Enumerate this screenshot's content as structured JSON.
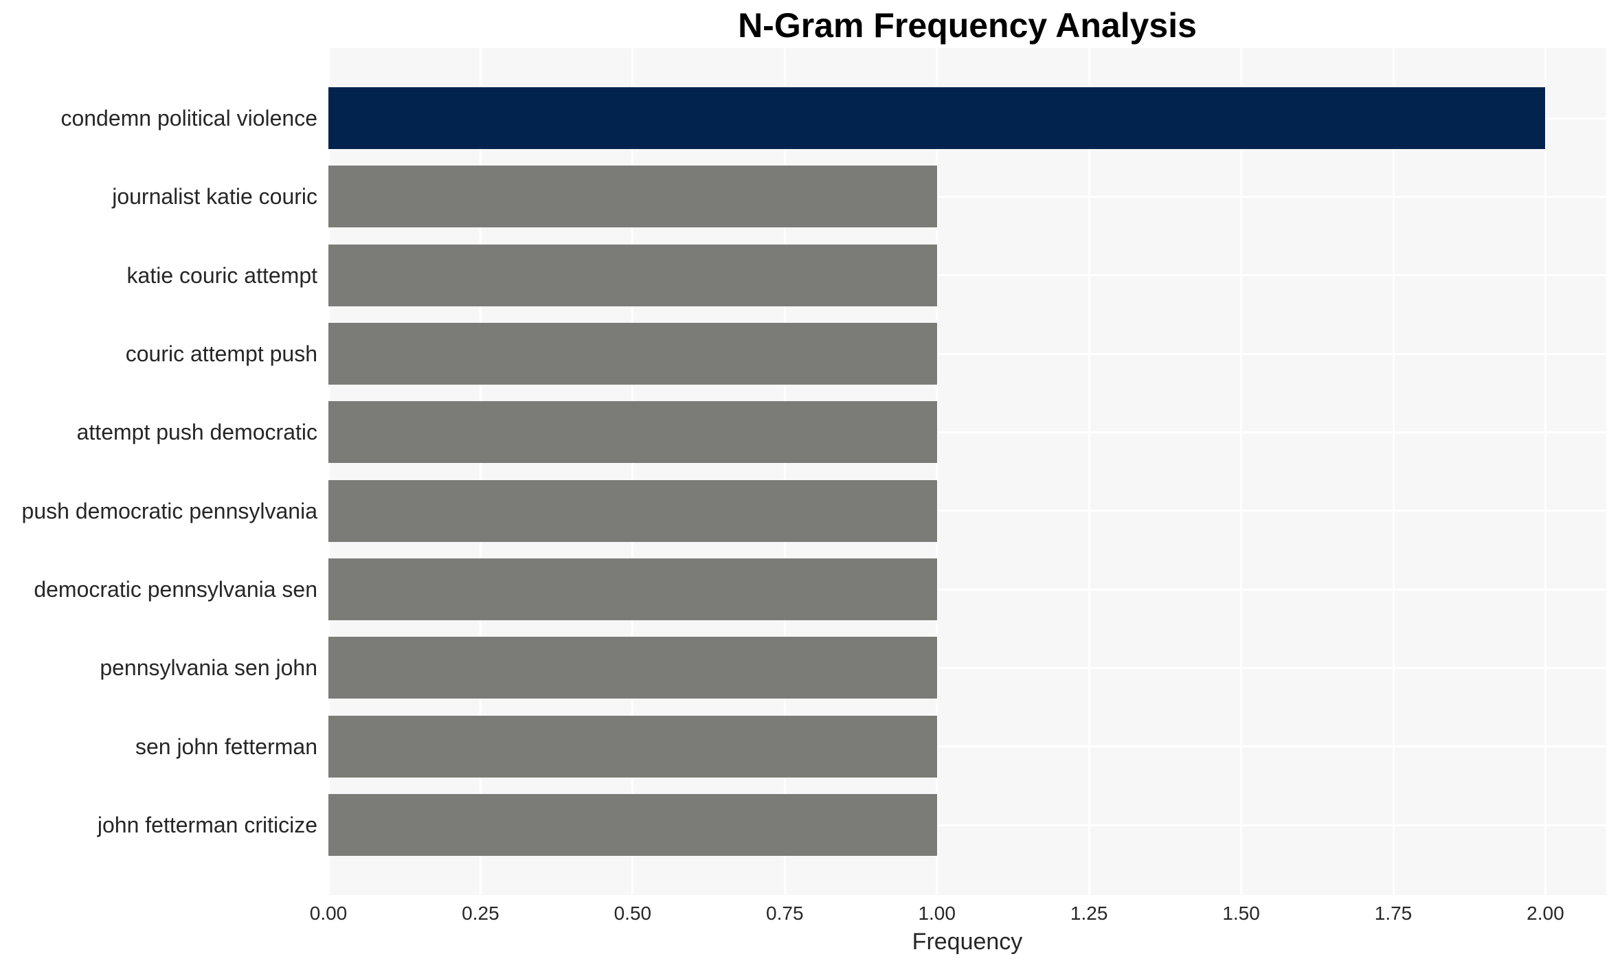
{
  "title": "N-Gram Frequency Analysis",
  "chart_data": {
    "type": "bar",
    "orientation": "horizontal",
    "title": "N-Gram Frequency Analysis",
    "categories": [
      "condemn political violence",
      "journalist katie couric",
      "katie couric attempt",
      "couric attempt push",
      "attempt push democratic",
      "push democratic pennsylvania",
      "democratic pennsylvania sen",
      "pennsylvania sen john",
      "sen john fetterman",
      "john fetterman criticize"
    ],
    "values": [
      2,
      1,
      1,
      1,
      1,
      1,
      1,
      1,
      1,
      1
    ],
    "xlabel": "Frequency",
    "ylabel": "",
    "xlim": [
      0,
      2.1
    ],
    "xticks": [
      "0.00",
      "0.25",
      "0.50",
      "0.75",
      "1.00",
      "1.25",
      "1.50",
      "1.75",
      "2.00"
    ],
    "grid": true,
    "legend": false,
    "colors": {
      "highlight_bar": "#02234e",
      "default_bar": "#7b7b77",
      "plot_background": "#f7f7f7",
      "gridline": "#ffffff",
      "tick_text": "#262626",
      "title_text": "#000000"
    },
    "bar_colors": [
      "#02234e",
      "#7b7b77",
      "#7b7b77",
      "#7b7b77",
      "#7b7b77",
      "#7b7b77",
      "#7b7b77",
      "#7b7b77",
      "#7b7b77",
      "#7b7b77"
    ]
  }
}
